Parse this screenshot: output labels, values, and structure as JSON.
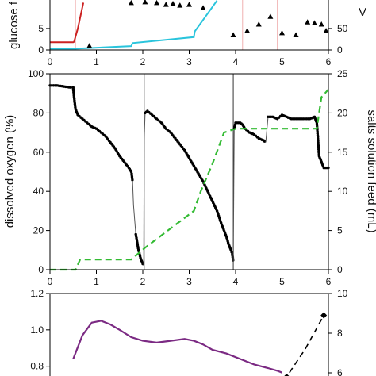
{
  "chart_data": [
    {
      "type": "line",
      "panel": "top",
      "xlim": [
        0,
        6
      ],
      "x_ticks": [
        0,
        1,
        2,
        3,
        4,
        5,
        6
      ],
      "left_axis": {
        "label": "glucose f",
        "ticks": [
          0,
          5
        ],
        "ylim": [
          0,
          12
        ]
      },
      "right_axis": {
        "label": "V",
        "ticks": [
          0,
          50
        ],
        "ylim": [
          0,
          120
        ]
      },
      "series": [
        {
          "style": "red-line",
          "color": "#cc2222",
          "x": [
            0,
            0.5,
            0.52,
            0.6,
            0.72
          ],
          "y": [
            1.8,
            1.8,
            1.9,
            5.0,
            11.0
          ]
        },
        {
          "style": "cyan-line",
          "color": "#29c4dc",
          "x": [
            0,
            0.55,
            1.75,
            1.78,
            3.1,
            3.12,
            3.6
          ],
          "y": [
            0.3,
            0.3,
            0.9,
            1.6,
            3.0,
            4.3,
            11.5
          ]
        },
        {
          "style": "triangles",
          "color": "#000000",
          "x": [
            0.85,
            1.75,
            2.05,
            2.3,
            2.5,
            2.65,
            2.8,
            3.0,
            3.3,
            3.95,
            4.25,
            4.5,
            4.75,
            5.0,
            5.3,
            5.55,
            5.7,
            5.85,
            5.95
          ],
          "y": [
            1.0,
            11.0,
            11.2,
            11.0,
            10.6,
            10.8,
            10.4,
            10.6,
            9.8,
            3.5,
            4.5,
            6.0,
            7.8,
            4.0,
            3.5,
            6.5,
            6.3,
            6.0,
            4.5
          ]
        }
      ],
      "vlines": [
        {
          "x": 0.55,
          "color": "#f0b0b0"
        },
        {
          "x": 4.15,
          "color": "#f0b0b0"
        },
        {
          "x": 4.9,
          "color": "#f0b0b0"
        }
      ]
    },
    {
      "type": "line",
      "panel": "middle",
      "xlim": [
        0,
        6
      ],
      "x_ticks": [
        0,
        1,
        2,
        3,
        4,
        5,
        6
      ],
      "left_axis": {
        "label": "dissolved oxygen (%)",
        "ticks": [
          0,
          20,
          40,
          60,
          80,
          100
        ],
        "ylim": [
          0,
          100
        ]
      },
      "right_axis": {
        "label": "salts solution feed (mL)",
        "ticks": [
          0,
          5,
          10,
          15,
          20,
          25
        ],
        "ylim": [
          0,
          25
        ]
      },
      "series": [
        {
          "style": "black-dots",
          "color": "#000000",
          "axis": "left",
          "x": [
            0,
            0.15,
            0.3,
            0.45,
            0.5,
            0.52,
            0.55,
            0.6,
            0.7,
            0.8,
            0.9,
            1.0,
            1.1,
            1.2,
            1.3,
            1.4,
            1.5,
            1.6,
            1.7,
            1.75,
            1.76,
            1.78,
            1.8,
            1.85,
            1.9,
            1.95,
            2.0,
            2.02,
            2.03,
            2.05,
            2.1,
            2.2,
            2.3,
            2.4,
            2.5,
            2.6,
            2.7,
            2.8,
            2.9,
            3.0,
            3.1,
            3.2,
            3.3,
            3.4,
            3.5,
            3.6,
            3.7,
            3.8,
            3.85,
            3.9,
            3.93,
            3.95,
            3.97,
            4.0,
            4.1,
            4.15,
            4.2,
            4.3,
            4.4,
            4.5,
            4.6,
            4.65,
            4.7,
            4.8,
            4.9,
            5.0,
            5.1,
            5.2,
            5.3,
            5.4,
            5.5,
            5.6,
            5.7,
            5.75,
            5.78,
            5.8,
            5.85,
            5.9,
            6.0
          ],
          "y": [
            94,
            94,
            93.5,
            93,
            93,
            88,
            82,
            79,
            77,
            75,
            73,
            72,
            70,
            68,
            65,
            62,
            58,
            55,
            52,
            50,
            49,
            45,
            33,
            18,
            11,
            6,
            3,
            2,
            66,
            80,
            81,
            79,
            77,
            75,
            72,
            70,
            67,
            64,
            61,
            57,
            53,
            49,
            45,
            40,
            35,
            30,
            23,
            17,
            13,
            10,
            8,
            4,
            72,
            75,
            75,
            74,
            72,
            70,
            69,
            67,
            66,
            65,
            78,
            78,
            77,
            79,
            78,
            77,
            77,
            77,
            77,
            77,
            78,
            75,
            65,
            58,
            55,
            52,
            52
          ]
        },
        {
          "style": "green-dashed",
          "color": "#33bb33",
          "axis": "right",
          "x": [
            0,
            0.55,
            0.65,
            1.75,
            2.05,
            3.1,
            3.25,
            3.5,
            3.75,
            4.0,
            5.75,
            5.85,
            6.0
          ],
          "y": [
            0,
            0,
            1.3,
            1.3,
            2.8,
            7.5,
            10.0,
            13.5,
            17.5,
            18,
            18,
            22,
            23
          ]
        }
      ],
      "vlines": [
        {
          "x": 2.03,
          "color": "#333333"
        },
        {
          "x": 3.95,
          "color": "#333333"
        }
      ]
    },
    {
      "type": "line",
      "panel": "bottom",
      "xlim": [
        0,
        6
      ],
      "left_axis": {
        "label": "",
        "ticks": [
          0.8,
          1.0,
          1.2
        ],
        "ylim": [
          0.72,
          1.2
        ]
      },
      "right_axis": {
        "label": "",
        "ticks": [
          6,
          8,
          10
        ],
        "ylim": [
          5.6,
          10
        ]
      },
      "series": [
        {
          "style": "purple-line",
          "color": "#7b2a83",
          "axis": "left",
          "x": [
            0.5,
            0.7,
            0.9,
            1.1,
            1.3,
            1.5,
            1.75,
            2.0,
            2.3,
            2.6,
            2.9,
            3.1,
            3.3,
            3.5,
            3.8,
            4.1,
            4.4,
            4.7,
            4.9,
            5.0
          ],
          "y": [
            0.84,
            0.97,
            1.04,
            1.05,
            1.03,
            1.0,
            0.96,
            0.94,
            0.93,
            0.94,
            0.95,
            0.94,
            0.92,
            0.89,
            0.87,
            0.84,
            0.81,
            0.79,
            0.775,
            0.765
          ]
        },
        {
          "style": "black-dashed-diamonds",
          "color": "#000000",
          "axis": "right",
          "x": [
            4.8,
            5.1,
            5.5,
            5.9
          ],
          "y": [
            5.7,
            5.8,
            7.2,
            8.9
          ],
          "markers": [
            false,
            true,
            false,
            true
          ]
        }
      ]
    }
  ]
}
